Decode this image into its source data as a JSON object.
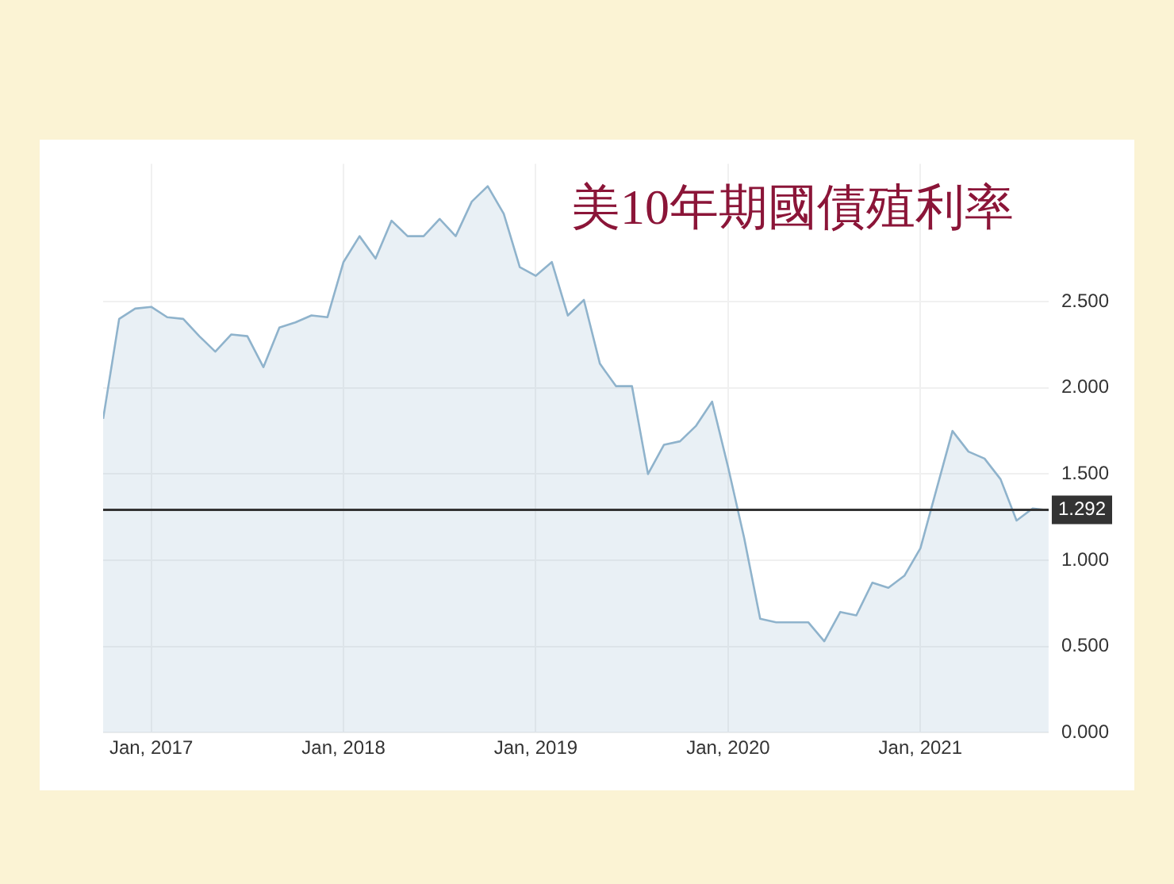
{
  "chart_data": {
    "type": "area",
    "title": "美10年期國債殖利率",
    "x": [
      "2016-10",
      "2016-11",
      "2016-12",
      "2017-01",
      "2017-02",
      "2017-03",
      "2017-04",
      "2017-05",
      "2017-06",
      "2017-07",
      "2017-08",
      "2017-09",
      "2017-10",
      "2017-11",
      "2017-12",
      "2018-01",
      "2018-02",
      "2018-03",
      "2018-04",
      "2018-05",
      "2018-06",
      "2018-07",
      "2018-08",
      "2018-09",
      "2018-10",
      "2018-11",
      "2018-12",
      "2019-01",
      "2019-02",
      "2019-03",
      "2019-04",
      "2019-05",
      "2019-06",
      "2019-07",
      "2019-08",
      "2019-09",
      "2019-10",
      "2019-11",
      "2019-12",
      "2020-01",
      "2020-02",
      "2020-03",
      "2020-04",
      "2020-05",
      "2020-06",
      "2020-07",
      "2020-08",
      "2020-09",
      "2020-10",
      "2020-11",
      "2020-12",
      "2021-01",
      "2021-02",
      "2021-03",
      "2021-04",
      "2021-05",
      "2021-06",
      "2021-07",
      "2021-08",
      "2021-09"
    ],
    "series": [
      {
        "color": "#8fb3cc",
        "values": [
          1.82,
          2.4,
          2.46,
          2.47,
          2.41,
          2.4,
          2.3,
          2.21,
          2.31,
          2.3,
          2.12,
          2.35,
          2.38,
          2.42,
          2.41,
          2.73,
          2.88,
          2.75,
          2.97,
          2.88,
          2.88,
          2.98,
          2.88,
          3.08,
          3.17,
          3.01,
          2.7,
          2.65,
          2.73,
          2.42,
          2.51,
          2.14,
          2.01,
          2.01,
          1.5,
          1.67,
          1.69,
          1.78,
          1.92,
          1.54,
          1.13,
          0.66,
          0.64,
          0.64,
          0.64,
          0.53,
          0.7,
          0.68,
          0.87,
          0.84,
          0.91,
          1.07,
          1.41,
          1.75,
          1.63,
          1.59,
          1.47,
          1.23,
          1.3,
          1.29
        ]
      }
    ],
    "xlim": [
      "2016-10",
      "2021-09"
    ],
    "xticks": [
      {
        "value": "2017-01",
        "label": "Jan, 2017"
      },
      {
        "value": "2018-01",
        "label": "Jan, 2018"
      },
      {
        "value": "2019-01",
        "label": "Jan, 2019"
      },
      {
        "value": "2020-01",
        "label": "Jan, 2020"
      },
      {
        "value": "2021-01",
        "label": "Jan, 2021"
      }
    ],
    "ylim": [
      0,
      3.3
    ],
    "yticks": [
      {
        "value": 0,
        "label": "0.000"
      },
      {
        "value": 0.5,
        "label": "0.500"
      },
      {
        "value": 1,
        "label": "1.000"
      },
      {
        "value": 1.5,
        "label": "1.500"
      },
      {
        "value": 2,
        "label": "2.000"
      },
      {
        "value": 2.5,
        "label": "2.500"
      }
    ],
    "ref_lines": [
      {
        "axis": "y",
        "value": 1.292,
        "label": "1.292",
        "color": "#333333"
      }
    ],
    "grid": true,
    "legend": false,
    "marker": "none"
  }
}
